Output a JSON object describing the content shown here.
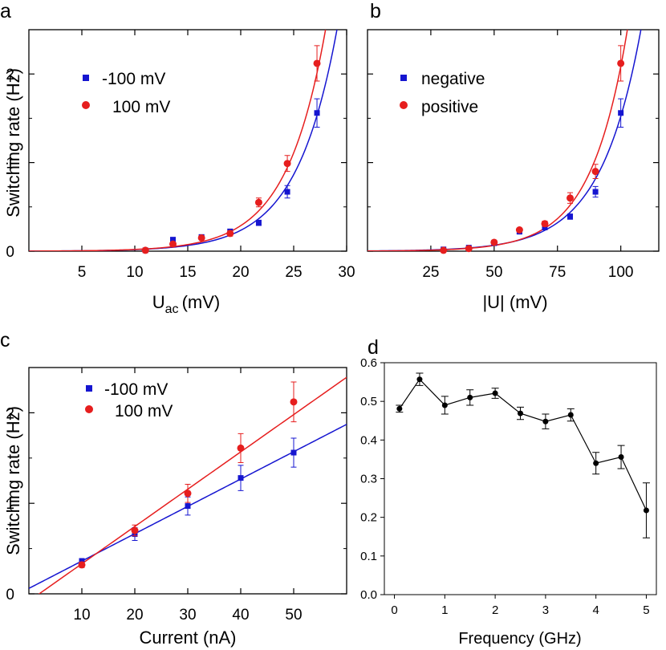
{
  "chart_data": [
    {
      "panel": "a",
      "type": "scatter",
      "xlabel": "U",
      "xlabel_sub": "ac",
      "xlabel_unit": "(mV)",
      "ylabel": "Switching rate (Hz)",
      "xlim": [
        0,
        30
      ],
      "ylim": [
        0,
        2.5
      ],
      "xticks": [
        5,
        10,
        15,
        20,
        25,
        30
      ],
      "yticks": [
        0,
        1,
        2
      ],
      "legend_position": "top-left",
      "series": [
        {
          "name": "-100 mV",
          "color": "#1515d0",
          "marker": "square",
          "x": [
            11,
            13.6,
            16.3,
            19,
            21.7,
            24.4,
            27.2
          ],
          "y": [
            0.01,
            0.13,
            0.16,
            0.22,
            0.32,
            0.67,
            1.56
          ],
          "err": [
            0.02,
            0.02,
            0.02,
            0.03,
            0.03,
            0.07,
            0.16
          ],
          "fit": {
            "a": 0.0013,
            "b": 0.26
          }
        },
        {
          "name": "100 mV",
          "color": "#e61e1e",
          "marker": "circle",
          "x": [
            11,
            13.6,
            16.3,
            19,
            21.7,
            24.4,
            27.2
          ],
          "y": [
            0.01,
            0.08,
            0.15,
            0.2,
            0.55,
            0.99,
            2.12
          ],
          "err": [
            0.02,
            0.02,
            0.02,
            0.03,
            0.05,
            0.09,
            0.2
          ],
          "fit": {
            "a": 0.0013,
            "b": 0.27
          }
        }
      ]
    },
    {
      "panel": "b",
      "type": "scatter",
      "xlabel": "|U| (mV)",
      "xlim": [
        0,
        115
      ],
      "ylim": [
        0,
        2.5
      ],
      "xticks": [
        25,
        50,
        75,
        100
      ],
      "legend_position": "top-left",
      "series": [
        {
          "name": "negative",
          "color": "#1515d0",
          "marker": "square",
          "x": [
            30,
            40,
            50,
            60,
            70,
            80,
            90,
            100
          ],
          "y": [
            0.02,
            0.04,
            0.09,
            0.22,
            0.27,
            0.39,
            0.67,
            1.56
          ],
          "err": [
            0.01,
            0.01,
            0.02,
            0.02,
            0.03,
            0.03,
            0.06,
            0.16
          ],
          "fit": {
            "a": 0.003,
            "b": 0.0623
          }
        },
        {
          "name": "positive",
          "color": "#e61e1e",
          "marker": "circle",
          "x": [
            30,
            40,
            50,
            60,
            70,
            80,
            90,
            100
          ],
          "y": [
            0.01,
            0.03,
            0.1,
            0.24,
            0.31,
            0.6,
            0.9,
            2.12
          ],
          "err": [
            0.01,
            0.01,
            0.02,
            0.02,
            0.03,
            0.06,
            0.08,
            0.2
          ],
          "fit": {
            "a": 0.002,
            "b": 0.0695
          }
        }
      ]
    },
    {
      "panel": "c",
      "type": "scatter",
      "xlabel": "Current (nA)",
      "ylabel": "Switching rate (Hz)",
      "xlim": [
        0,
        60
      ],
      "ylim": [
        0,
        2.5
      ],
      "xticks": [
        10,
        20,
        30,
        40,
        50
      ],
      "yticks": [
        0,
        1,
        2
      ],
      "legend_position": "top-left",
      "series": [
        {
          "name": "-100 mV",
          "color": "#1515d0",
          "marker": "square",
          "x": [
            10,
            20,
            30,
            40,
            50
          ],
          "y": [
            0.36,
            0.66,
            0.97,
            1.28,
            1.56
          ],
          "err": [
            0.03,
            0.07,
            0.1,
            0.14,
            0.16
          ],
          "fit": {
            "slope": 0.0302,
            "intercept": 0.06
          }
        },
        {
          "name": "100 mV",
          "color": "#e61e1e",
          "marker": "circle",
          "x": [
            10,
            20,
            30,
            40,
            50
          ],
          "y": [
            0.32,
            0.7,
            1.11,
            1.61,
            2.12
          ],
          "err": [
            0.03,
            0.06,
            0.1,
            0.16,
            0.22
          ],
          "fit": {
            "slope": 0.0412,
            "intercept": -0.08
          }
        }
      ]
    },
    {
      "panel": "d",
      "type": "line",
      "xlabel": "Frequency (GHz)",
      "xlim": [
        -0.2,
        5.2
      ],
      "ylim": [
        0,
        0.6
      ],
      "xticks": [
        0,
        1,
        2,
        3,
        4,
        5
      ],
      "yticks": [
        "0.0",
        "0.1",
        "0.2",
        "0.3",
        "0.4",
        "0.5",
        "0.6"
      ],
      "series": [
        {
          "color": "#000000",
          "marker": "circle",
          "x": [
            0.1,
            0.5,
            1,
            1.5,
            2,
            2.5,
            3,
            3.5,
            4,
            4.5,
            5
          ],
          "y": [
            0.481,
            0.557,
            0.49,
            0.51,
            0.521,
            0.469,
            0.448,
            0.465,
            0.34,
            0.356,
            0.218
          ],
          "err": [
            0.009,
            0.016,
            0.023,
            0.02,
            0.013,
            0.016,
            0.019,
            0.016,
            0.028,
            0.03,
            0.071
          ]
        }
      ]
    }
  ]
}
